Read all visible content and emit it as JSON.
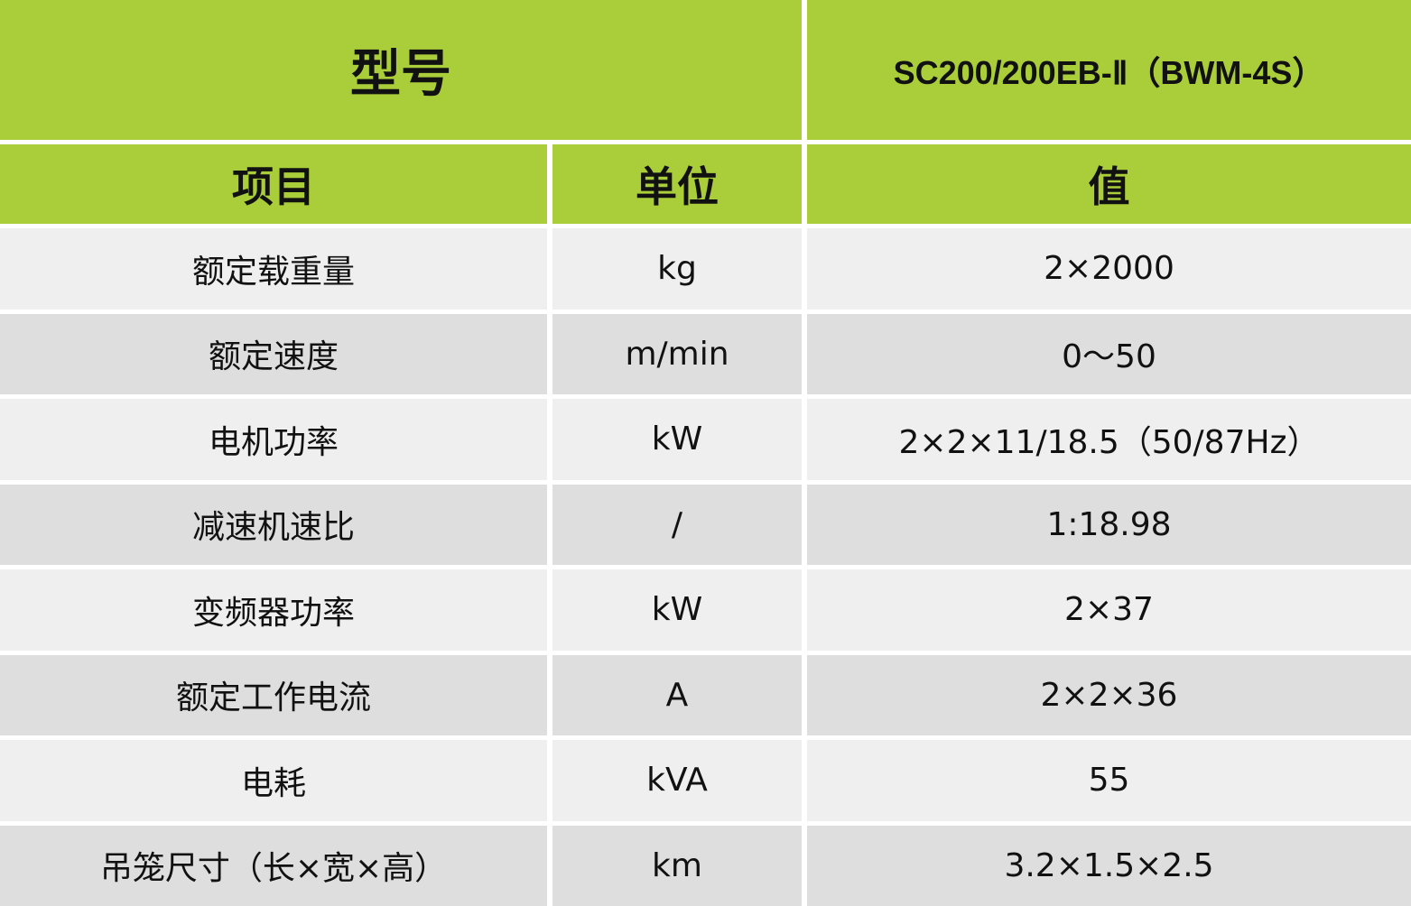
{
  "header": {
    "model_label": "型号",
    "model_value": "SC200/200EB-Ⅱ（BWM-4S）",
    "columns": [
      "项目",
      "单位",
      "值"
    ]
  },
  "rows": [
    {
      "item": "额定载重量",
      "unit": "kg",
      "value": "2×2000"
    },
    {
      "item": "额定速度",
      "unit": "m/min",
      "value": "0～50"
    },
    {
      "item": "电机功率",
      "unit": "kW",
      "value": "2×2×11/18.5（50/87Hz）"
    },
    {
      "item": "减速机速比",
      "unit": "/",
      "value": "1:18.98"
    },
    {
      "item": "变频器功率",
      "unit": "kW",
      "value": "2×37"
    },
    {
      "item": "额定工作电流",
      "unit": "A",
      "value": "2×2×36"
    },
    {
      "item": "电耗",
      "unit": "kVA",
      "value": "55"
    },
    {
      "item": "吊笼尺寸（长×宽×高）",
      "unit": "km",
      "value": "3.2×1.5×2.5"
    }
  ],
  "colors": {
    "header": "#aacd3a",
    "row_light": "#efefef",
    "row_dark": "#dedede"
  }
}
